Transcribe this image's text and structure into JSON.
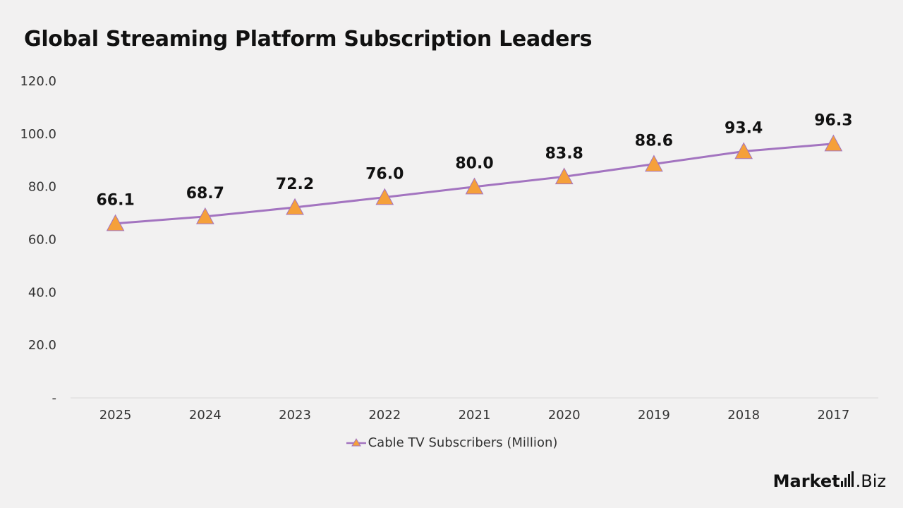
{
  "title": "Global Streaming Platform Subscription Leaders",
  "legend": {
    "label": "Cable TV Subscribers (Million)"
  },
  "logo": {
    "main": "Market",
    "sub": ".Biz"
  },
  "colors": {
    "line": "#a374c0",
    "marker_fill": "#f5a03a",
    "marker_stroke": "#a374c0",
    "axis": "#d9d9d9"
  },
  "chart_data": {
    "type": "line",
    "title": "Global Streaming Platform Subscription Leaders",
    "categories": [
      "2025",
      "2024",
      "2023",
      "2022",
      "2021",
      "2020",
      "2019",
      "2018",
      "2017"
    ],
    "series": [
      {
        "name": "Cable TV Subscribers (Million)",
        "values": [
          66.1,
          68.7,
          72.2,
          76.0,
          80.0,
          83.8,
          88.6,
          93.4,
          96.3
        ]
      }
    ],
    "ylim": [
      0,
      120
    ],
    "yticks": [
      0,
      20,
      40,
      60,
      80,
      100,
      120
    ],
    "ytick_labels": [
      "-",
      "20.0",
      "40.0",
      "60.0",
      "80.0",
      "100.0",
      "120.0"
    ],
    "data_labels": [
      "66.1",
      "68.7",
      "72.2",
      "76.0",
      "80.0",
      "83.8",
      "88.6",
      "93.4",
      "96.3"
    ],
    "marker": "triangle",
    "grid": false,
    "legend_position": "bottom"
  }
}
